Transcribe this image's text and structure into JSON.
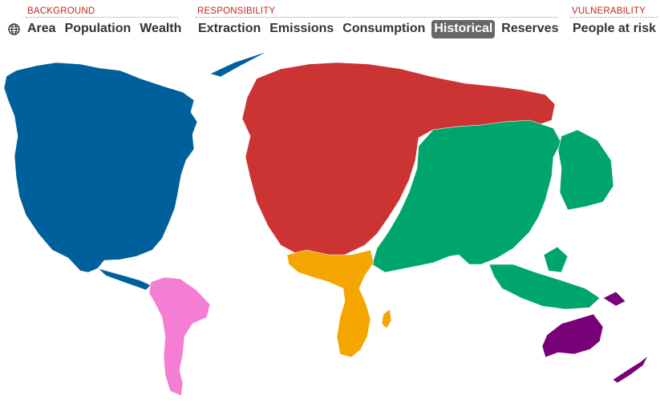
{
  "nav": {
    "groups": [
      {
        "label": "BACKGROUND",
        "tabs": [
          "Area",
          "Population",
          "Wealth"
        ]
      },
      {
        "label": "RESPONSIBILITY",
        "tabs": [
          "Extraction",
          "Emissions",
          "Consumption",
          "Historical",
          "Reserves"
        ]
      },
      {
        "label": "VULNERABILITY",
        "tabs": [
          "People at risk"
        ]
      }
    ],
    "active_tab": "Historical",
    "globe_icon": "globe-icon"
  },
  "map": {
    "regions": [
      {
        "name": "north-america",
        "color": "#00609c"
      },
      {
        "name": "south-america",
        "color": "#f47ed4"
      },
      {
        "name": "europe-russia",
        "color": "#cc3333"
      },
      {
        "name": "asia",
        "color": "#00a56d"
      },
      {
        "name": "africa",
        "color": "#f5a500"
      },
      {
        "name": "oceania",
        "color": "#7a007a"
      }
    ]
  }
}
